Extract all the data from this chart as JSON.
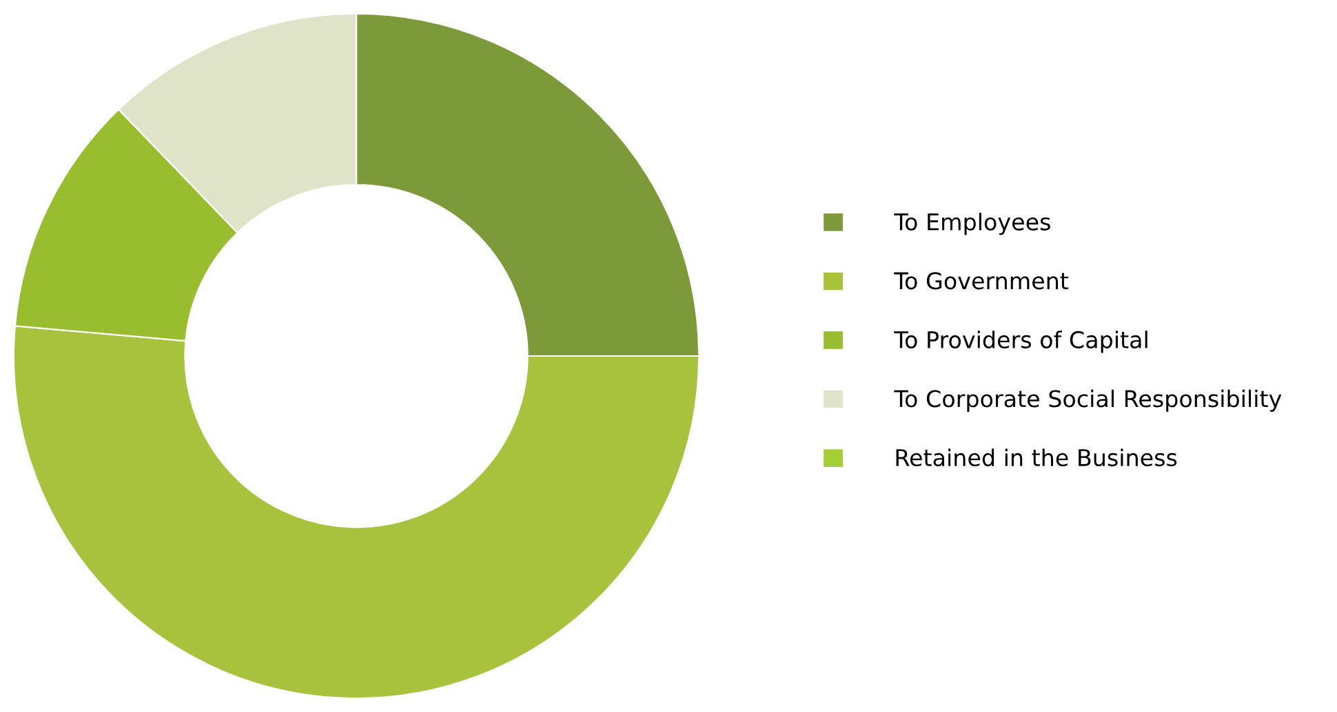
{
  "chart_data": {
    "type": "donut",
    "categories": [
      "To Employees",
      "To Government",
      "To Providers of Capital",
      "To Corporate Social Responsibility",
      "Retained in the Business"
    ],
    "values": [
      25,
      51.4,
      11.4,
      12.2,
      0
    ],
    "colors": [
      "#7d9a3a",
      "#a9c23d",
      "#98bd2f",
      "#dfe4c8",
      "#a6ce39"
    ],
    "legend": "right"
  }
}
